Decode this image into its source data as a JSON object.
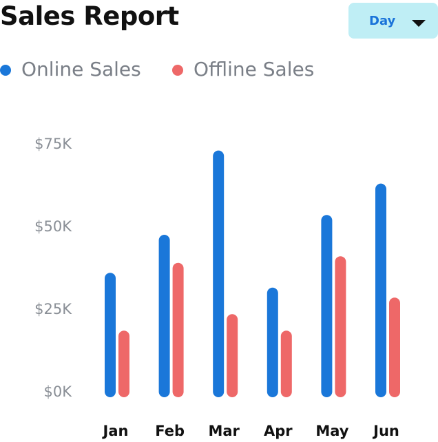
{
  "header": {
    "title": "Sales Report",
    "period_select": {
      "value": "Day",
      "icon": "caret-down-icon"
    }
  },
  "colors": {
    "online": "#1a77d9",
    "offline": "#ee6868",
    "select_bg": "#bfeef5",
    "select_text": "#1a73d9"
  },
  "legend": [
    {
      "label": "Online Sales",
      "color": "#1a77d9"
    },
    {
      "label": "Offline Sales",
      "color": "#ee6868"
    }
  ],
  "chart_data": {
    "type": "bar",
    "title": "Sales Report",
    "xlabel": "",
    "ylabel": "",
    "categories": [
      "Jan",
      "Feb",
      "Mar",
      "Apr",
      "May",
      "Jun"
    ],
    "series": [
      {
        "name": "Online Sales",
        "color": "#1a77d9",
        "values": [
          36000,
          47500,
          73000,
          31500,
          53500,
          63000
        ]
      },
      {
        "name": "Offline Sales",
        "color": "#ee6868",
        "values": [
          18500,
          39000,
          23500,
          18500,
          41000,
          28500
        ]
      }
    ],
    "yticks": [
      0,
      25000,
      50000,
      75000
    ],
    "ytick_labels": [
      "$0K",
      "$25K",
      "$50K",
      "$75K"
    ],
    "ylim": [
      0,
      75000
    ],
    "grid": false,
    "legend_position": "top-left"
  }
}
